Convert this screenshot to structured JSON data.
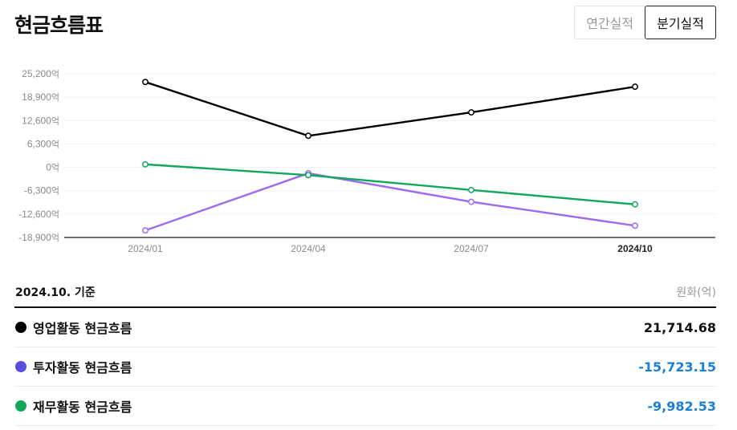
{
  "header": {
    "title": "현금흐름표"
  },
  "tabs": [
    {
      "label": "연간실적",
      "active": false
    },
    {
      "label": "분기실적",
      "active": true
    }
  ],
  "chart_data": {
    "type": "line",
    "x": [
      "2024/01",
      "2024/04",
      "2024/07",
      "2024/10"
    ],
    "y_ticks": [
      "25,200",
      "18,900",
      "12,600",
      "6,300",
      "0",
      "-6,300",
      "-12,600",
      "-18,900"
    ],
    "y_tick_values": [
      25200,
      18900,
      12600,
      6300,
      0,
      -6300,
      -12600,
      -18900
    ],
    "y_unit": "억",
    "ylim": [
      -18900,
      25200
    ],
    "grid": true,
    "highlight_x": "2024/10",
    "series": [
      {
        "name": "영업활동 현금흐름",
        "color": "#000000",
        "values": [
          23000,
          8500,
          14800,
          21714.68
        ]
      },
      {
        "name": "투자활동 현금흐름",
        "color": "#9b6bf0",
        "values": [
          -17000,
          -1600,
          -9300,
          -15723.15
        ]
      },
      {
        "name": "재무활동 현금흐름",
        "color": "#11a85c",
        "values": [
          800,
          -2100,
          -6100,
          -9982.53
        ]
      }
    ]
  },
  "summary": {
    "as_of": "2024.10. 기준",
    "unit": "원화(억)",
    "rows": [
      {
        "label": "영업활동 현금흐름",
        "value": "21,714.68",
        "dot_color": "#000000",
        "value_color": "#111111"
      },
      {
        "label": "투자활동 현금흐름",
        "value": "-15,723.15",
        "dot_color": "#5b4ce0",
        "value_color": "#1a7fd6"
      },
      {
        "label": "재무활동 현금흐름",
        "value": "-9,982.53",
        "dot_color": "#11a85c",
        "value_color": "#1a7fd6"
      }
    ]
  }
}
